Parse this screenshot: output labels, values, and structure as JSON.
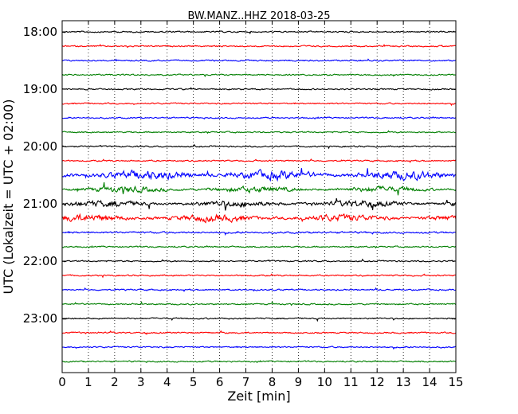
{
  "chart_data": {
    "type": "line",
    "title": "BW.MANZ..HHZ 2018-03-25",
    "xlabel": "Zeit  [min]",
    "ylabel": "UTC (Lokalzeit = UTC + 02:00)",
    "xlim": [
      0,
      15
    ],
    "x_ticks": [
      "0",
      "1",
      "2",
      "3",
      "4",
      "5",
      "6",
      "7",
      "8",
      "9",
      "10",
      "11",
      "12",
      "13",
      "14",
      "15"
    ],
    "y_ticks": [
      "18:00",
      "19:00",
      "20:00",
      "21:00",
      "22:00",
      "23:00"
    ],
    "start_time": "18:00",
    "trace_interval_minutes": 15,
    "trace_count": 24,
    "trace_colors": [
      "#000000",
      "#ff0000",
      "#0000ff",
      "#007f00"
    ],
    "grid": {
      "x_dotted": true
    },
    "trace_activity": [
      1,
      1,
      1,
      1,
      1,
      1,
      1,
      1,
      1,
      1,
      3,
      2,
      2.2,
      2.4,
      1.3,
      1,
      1,
      1,
      1,
      1,
      1,
      1,
      1,
      1
    ]
  }
}
